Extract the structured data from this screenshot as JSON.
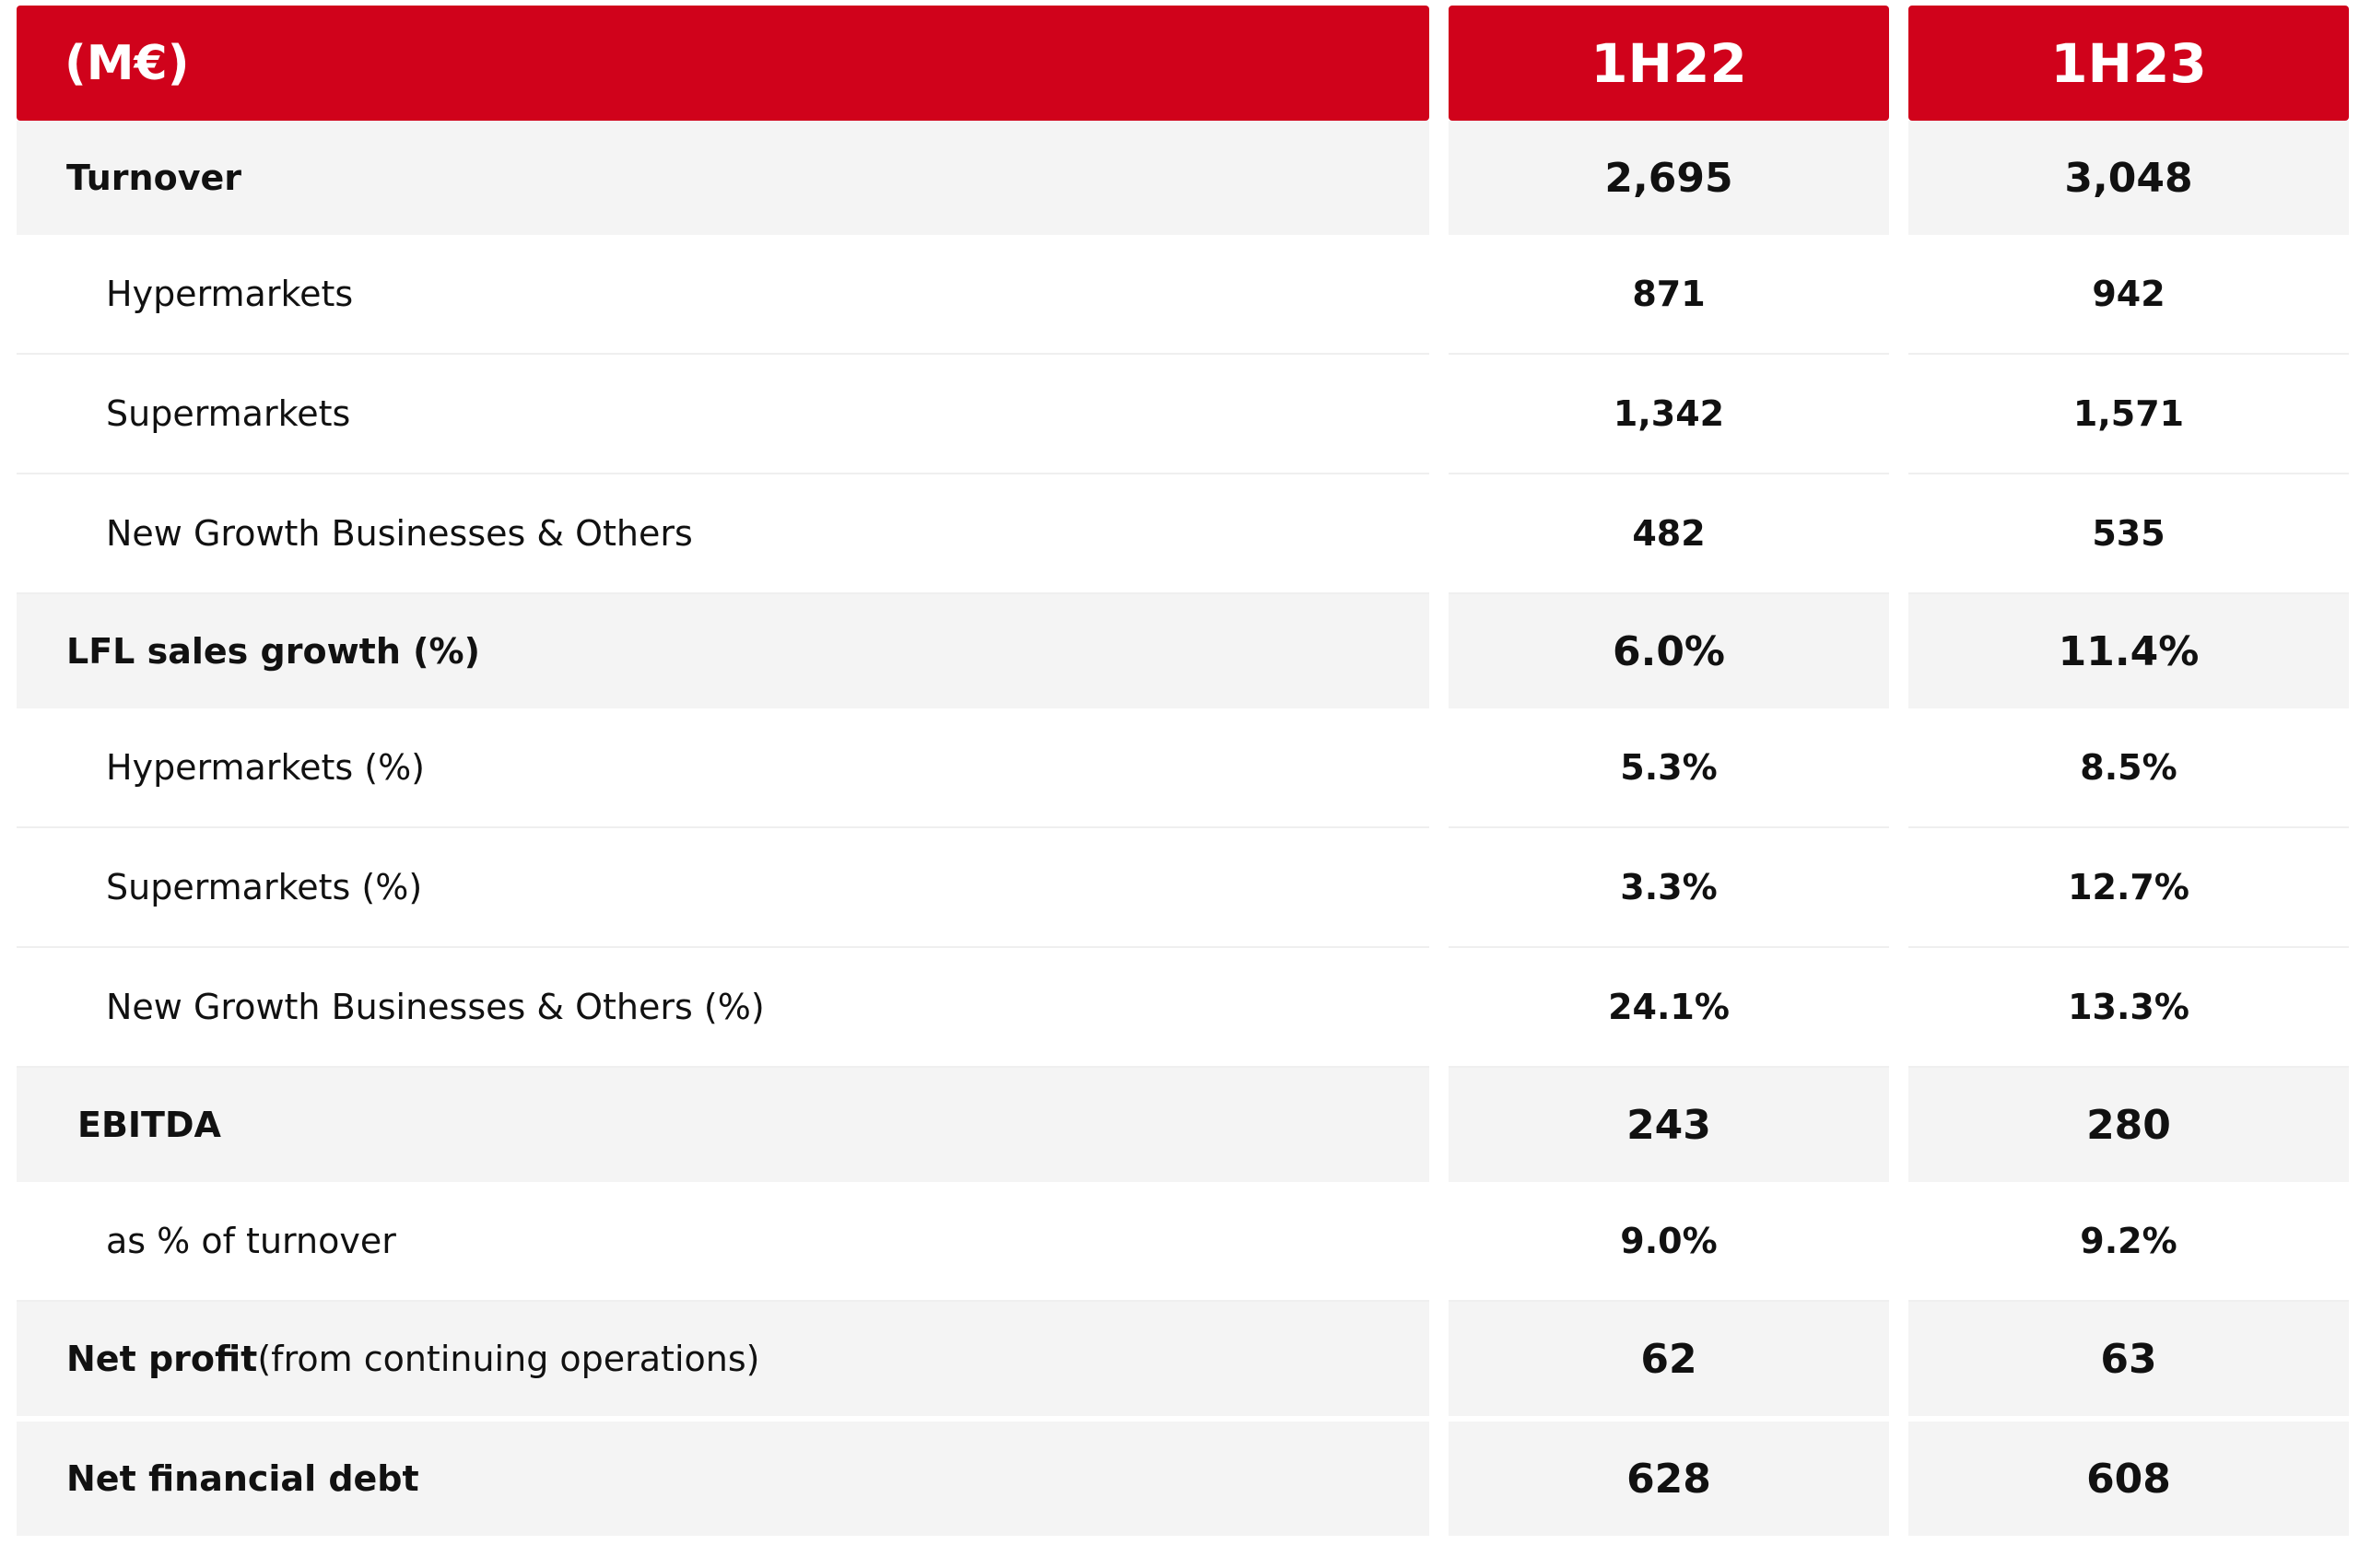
{
  "header": {
    "label": "(M€)",
    "col1": "1H22",
    "col2": "1H23"
  },
  "rows": [
    {
      "label": "Turnover",
      "v1": "2,695",
      "v2": "3,048",
      "style": "main"
    },
    {
      "label": "Hypermarkets",
      "v1": "871",
      "v2": "942",
      "style": "sub"
    },
    {
      "label": "Supermarkets",
      "v1": "1,342",
      "v2": "1,571",
      "style": "sub"
    },
    {
      "label": "New Growth Businesses & Others",
      "v1": "482",
      "v2": "535",
      "style": "sub"
    },
    {
      "label": "LFL sales growth (%)",
      "v1": "6.0%",
      "v2": "11.4%",
      "style": "main"
    },
    {
      "label": "Hypermarkets (%)",
      "v1": "5.3%",
      "v2": "8.5%",
      "style": "sub"
    },
    {
      "label": "Supermarkets (%)",
      "v1": "3.3%",
      "v2": "12.7%",
      "style": "sub"
    },
    {
      "label": "New Growth Businesses & Others (%)",
      "v1": "24.1%",
      "v2": "13.3%",
      "style": "sub"
    },
    {
      "label": "EBITDA",
      "v1": "243",
      "v2": "280",
      "style": "main"
    },
    {
      "label": "as % of turnover",
      "v1": "9.0%",
      "v2": "9.2%",
      "style": "sub"
    },
    {
      "label": "Net profit",
      "label_rest": " (from continuing operations)",
      "v1": "62",
      "v2": "63",
      "style": "main"
    },
    {
      "label": "Net financial debt",
      "v1": "628",
      "v2": "608",
      "style": "main"
    }
  ]
}
